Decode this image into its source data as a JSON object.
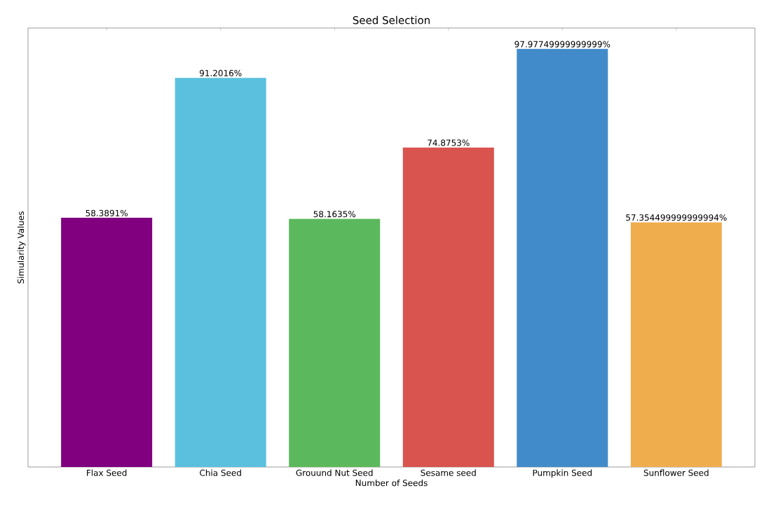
{
  "chart_data": {
    "type": "bar",
    "title": "Seed Selection",
    "xlabel": "Number of Seeds",
    "ylabel": "Simularity Values",
    "categories": [
      "Flax Seed",
      "Chia Seed",
      "Grouund Nut Seed",
      "Sesame seed",
      "Pumpkin Seed",
      "Sunflower Seed"
    ],
    "values": [
      58.3891,
      91.2016,
      58.1635,
      74.8753,
      97.97749999999999,
      57.354499999999994
    ],
    "colors": [
      "#800080",
      "#5bc0de",
      "#5cb85c",
      "#d9534f",
      "#428bca",
      "#f0ad4e"
    ],
    "value_labels": [
      "58.3891%",
      "91.2016%",
      "58.1635%",
      "74.8753%",
      "97.97749999999999%",
      "57.354499999999994%"
    ],
    "tick_labels": "x",
    "grid": false
  }
}
